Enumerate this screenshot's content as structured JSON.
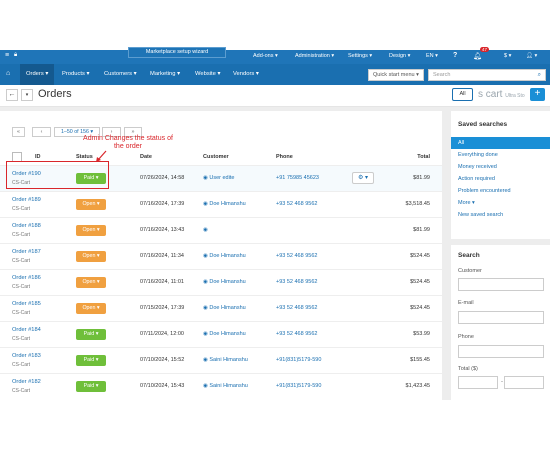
{
  "topbar": {
    "wizard": "Marketplace setup wizard",
    "menus": [
      "Add-ons",
      "Administration",
      "Settings",
      "Design",
      "EN"
    ],
    "notif_count": "47",
    "currency": "$"
  },
  "navbar": {
    "items": [
      "Orders",
      "Products",
      "Customers",
      "Marketing",
      "Website",
      "Vendors"
    ],
    "quick_start": "Quick start menu",
    "search_placeholder": "Search"
  },
  "titlebar": {
    "title": "Orders",
    "all_label": "All",
    "logo_text": "s cart",
    "logo_small": "Ultra Sto"
  },
  "pagination": {
    "first": "«",
    "prev": "‹",
    "range": "1–50 of 156",
    "next": "›",
    "last": "»"
  },
  "columns": {
    "id": "ID",
    "status": "Status",
    "date": "Date",
    "customer": "Customer",
    "phone": "Phone",
    "total": "Total"
  },
  "orders": [
    {
      "id": "Order #190",
      "company": "CS-Cart",
      "status": "Paid",
      "date": "07/26/2024, 14:58",
      "customer": "User edite",
      "phone": "+91 75985 45623",
      "total": "$81.99"
    },
    {
      "id": "Order #189",
      "company": "CS-Cart",
      "status": "Open",
      "date": "07/16/2024, 17:39",
      "customer": "Doe Himanshu",
      "phone": "+93 52 468 9562",
      "total": "$3,518.45"
    },
    {
      "id": "Order #188",
      "company": "CS-Cart",
      "status": "Open",
      "date": "07/16/2024, 13:43",
      "customer": "",
      "phone": "",
      "total": "$81.99"
    },
    {
      "id": "Order #187",
      "company": "CS-Cart",
      "status": "Open",
      "date": "07/16/2024, 11:34",
      "customer": "Doe Himanshu",
      "phone": "+93 52 468 9562",
      "total": "$524.45"
    },
    {
      "id": "Order #186",
      "company": "CS-Cart",
      "status": "Open",
      "date": "07/16/2024, 11:01",
      "customer": "Doe Himanshu",
      "phone": "+93 52 468 9562",
      "total": "$524.45"
    },
    {
      "id": "Order #185",
      "company": "CS-Cart",
      "status": "Open",
      "date": "07/15/2024, 17:39",
      "customer": "Doe Himanshu",
      "phone": "+93 52 468 9562",
      "total": "$524.45"
    },
    {
      "id": "Order #184",
      "company": "CS-Cart",
      "status": "Paid",
      "date": "07/11/2024, 12:00",
      "customer": "Doe Himanshu",
      "phone": "+93 52 468 9562",
      "total": "$53.99"
    },
    {
      "id": "Order #183",
      "company": "CS-Cart",
      "status": "Paid",
      "date": "07/10/2024, 15:52",
      "customer": "Saini Himanshu",
      "phone": "+91(831)5179-590",
      "total": "$155.45"
    },
    {
      "id": "Order #182",
      "company": "CS-Cart",
      "status": "Paid",
      "date": "07/10/2024, 15:43",
      "customer": "Saini Himanshu",
      "phone": "+91(831)5179-590",
      "total": "$1,423.45"
    }
  ],
  "annotation": "Admin Changes the status of the order",
  "saved_searches": {
    "title": "Saved searches",
    "items": [
      "All",
      "Everything done",
      "Money received",
      "Action required",
      "Problem encountered",
      "More",
      "New saved search"
    ]
  },
  "search_panel": {
    "title": "Search",
    "customer_label": "Customer",
    "email_label": "E-mail",
    "phone_label": "Phone",
    "total_label": "Total ($)"
  },
  "colors": {
    "topbar": "#1f75b8",
    "accent": "#1a8fd6",
    "paid": "#6fbf3a",
    "open": "#f0a040",
    "annotation": "#d9262b"
  }
}
